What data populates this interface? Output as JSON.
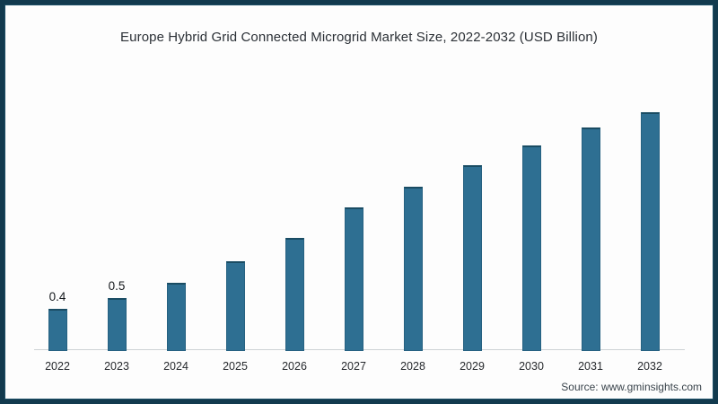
{
  "title": "Europe Hybrid Grid Connected Microgrid Market Size, 2022-2032 (USD Billion)",
  "source": "Source: www.gminsights.com",
  "colors": {
    "frame_border": "#123a4e",
    "bar_fill": "#2e6f92",
    "bar_edge": "#1a4c63",
    "axis_line": "#cdd2d5",
    "background": "#fdfdfd"
  },
  "chart_data": {
    "type": "bar",
    "title": "Europe Hybrid Grid Connected Microgrid Market Size, 2022-2032 (USD Billion)",
    "xlabel": "",
    "ylabel": "",
    "categories": [
      "2022",
      "2023",
      "2024",
      "2025",
      "2026",
      "2027",
      "2028",
      "2029",
      "2030",
      "2031",
      "2032"
    ],
    "values": [
      0.4,
      0.5,
      0.65,
      0.85,
      1.07,
      1.36,
      1.56,
      1.76,
      1.95,
      2.12,
      2.26
    ],
    "data_labels": [
      "0.4",
      "0.5",
      "",
      "",
      "",
      "",
      "",
      "",
      "",
      "",
      ""
    ],
    "ylim": [
      0,
      2.5
    ],
    "grid": false,
    "legend": false,
    "y_axis_visible": false,
    "x_axis_line": true
  }
}
